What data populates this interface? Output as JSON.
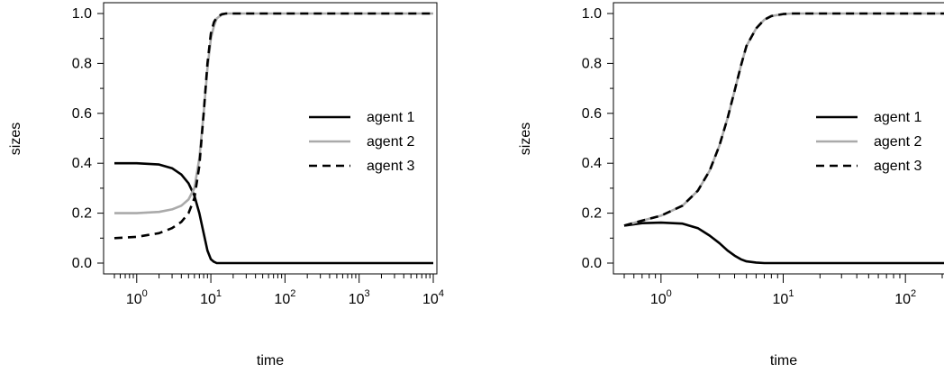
{
  "chart_data": [
    {
      "type": "line",
      "xlabel": "time",
      "ylabel": "sizes",
      "x_scale": "log10",
      "xlim": [
        0.5,
        10000
      ],
      "ylim": [
        0.0,
        1.0
      ],
      "y_ticks": [
        "0.0",
        "0.2",
        "0.4",
        "0.6",
        "0.8",
        "1.0"
      ],
      "x_ticks": [
        {
          "base": "10",
          "exp": "0",
          "value": 1
        },
        {
          "base": "10",
          "exp": "1",
          "value": 10
        },
        {
          "base": "10",
          "exp": "2",
          "value": 100
        },
        {
          "base": "10",
          "exp": "3",
          "value": 1000
        },
        {
          "base": "10",
          "exp": "4",
          "value": 10000
        }
      ],
      "legend_position": "right",
      "series": [
        {
          "name": "agent 1",
          "color": "#000000",
          "dash": "solid",
          "x": [
            0.5,
            1,
            2,
            3,
            4,
            5,
            6,
            7,
            8,
            9,
            10,
            11,
            12,
            15,
            20,
            100,
            1000,
            10000
          ],
          "y": [
            0.4,
            0.4,
            0.395,
            0.38,
            0.355,
            0.32,
            0.27,
            0.2,
            0.12,
            0.05,
            0.015,
            0.005,
            0.0,
            0.0,
            0.0,
            0.0,
            0.0,
            0.0
          ]
        },
        {
          "name": "agent 2",
          "color": "#aaaaaa",
          "dash": "solid",
          "x": [
            0.5,
            1,
            2,
            3,
            4,
            5,
            6,
            7,
            8,
            9,
            10,
            11,
            12,
            14,
            16,
            20,
            100,
            1000,
            10000
          ],
          "y": [
            0.2,
            0.2,
            0.205,
            0.215,
            0.23,
            0.255,
            0.3,
            0.42,
            0.6,
            0.78,
            0.9,
            0.95,
            0.98,
            0.995,
            1.0,
            1.0,
            1.0,
            1.0,
            1.0
          ]
        },
        {
          "name": "agent 3",
          "color": "#000000",
          "dash": "dashed",
          "x": [
            0.5,
            1,
            2,
            3,
            4,
            5,
            6,
            7,
            8,
            9,
            10,
            11,
            12,
            14,
            16,
            20,
            100,
            1000,
            10000
          ],
          "y": [
            0.1,
            0.105,
            0.12,
            0.14,
            0.165,
            0.2,
            0.26,
            0.39,
            0.6,
            0.8,
            0.92,
            0.965,
            0.985,
            0.997,
            1.0,
            1.0,
            1.0,
            1.0,
            1.0
          ]
        }
      ]
    },
    {
      "type": "line",
      "xlabel": "time",
      "ylabel": "sizes",
      "x_scale": "log10",
      "xlim": [
        0.5,
        500
      ],
      "ylim": [
        0.0,
        1.0
      ],
      "y_ticks": [
        "0.0",
        "0.2",
        "0.4",
        "0.6",
        "0.8",
        "1.0"
      ],
      "x_ticks": [
        {
          "base": "10",
          "exp": "0",
          "value": 1
        },
        {
          "base": "10",
          "exp": "1",
          "value": 10
        },
        {
          "base": "10",
          "exp": "2",
          "value": 100
        }
      ],
      "legend_position": "right",
      "series": [
        {
          "name": "agent 1",
          "color": "#000000",
          "dash": "solid",
          "x": [
            0.5,
            0.7,
            1,
            1.5,
            2,
            2.5,
            3,
            3.5,
            4,
            4.5,
            5,
            6,
            7,
            8,
            10,
            20,
            100,
            500
          ],
          "y": [
            0.15,
            0.16,
            0.162,
            0.158,
            0.14,
            0.11,
            0.08,
            0.05,
            0.03,
            0.015,
            0.007,
            0.002,
            0.0,
            0.0,
            0.0,
            0.0,
            0.0,
            0.0
          ]
        },
        {
          "name": "agent 2",
          "color": "#aaaaaa",
          "dash": "solid",
          "x": [
            0.5,
            0.7,
            1,
            1.5,
            2,
            2.5,
            3,
            3.5,
            4,
            4.5,
            5,
            6,
            7,
            8,
            10,
            12,
            20,
            100,
            500
          ],
          "y": [
            0.15,
            0.17,
            0.19,
            0.23,
            0.29,
            0.37,
            0.47,
            0.58,
            0.69,
            0.79,
            0.87,
            0.94,
            0.975,
            0.99,
            0.998,
            1.0,
            1.0,
            1.0,
            1.0
          ]
        },
        {
          "name": "agent 3",
          "color": "#000000",
          "dash": "dashed",
          "x": [
            0.5,
            0.7,
            1,
            1.5,
            2,
            2.5,
            3,
            3.5,
            4,
            4.5,
            5,
            6,
            7,
            8,
            10,
            12,
            20,
            100,
            500
          ],
          "y": [
            0.15,
            0.17,
            0.19,
            0.23,
            0.29,
            0.37,
            0.47,
            0.58,
            0.69,
            0.79,
            0.87,
            0.94,
            0.975,
            0.99,
            0.998,
            1.0,
            1.0,
            1.0,
            1.0
          ]
        }
      ]
    }
  ]
}
